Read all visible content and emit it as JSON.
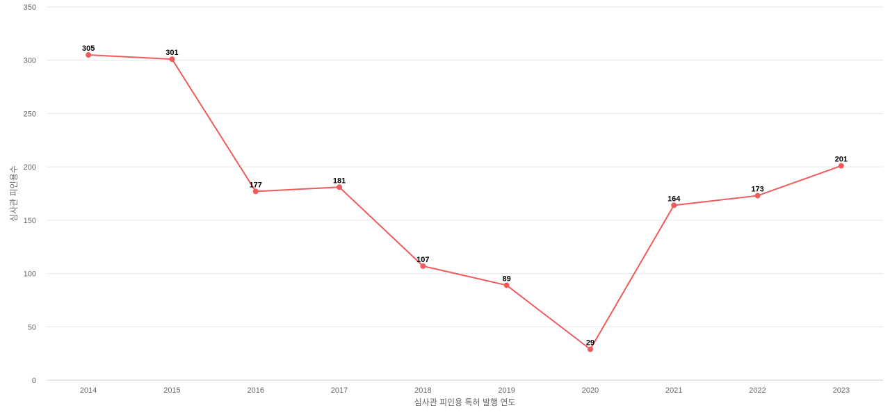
{
  "chart_data": {
    "type": "line",
    "title": "",
    "xlabel": "심사관 피인용 특허 발행 연도",
    "ylabel": "심사관 피인용수",
    "categories": [
      "2014",
      "2015",
      "2016",
      "2017",
      "2018",
      "2019",
      "2020",
      "2021",
      "2022",
      "2023"
    ],
    "series": [
      {
        "values": [
          305,
          301,
          177,
          181,
          107,
          89,
          29,
          164,
          173,
          201
        ],
        "color": "#ef5a5a"
      }
    ],
    "ylim": [
      0,
      350
    ],
    "yticks": [
      0,
      50,
      100,
      150,
      200,
      250,
      300,
      350
    ],
    "grid": true,
    "legend": "none",
    "data_labels": true
  }
}
